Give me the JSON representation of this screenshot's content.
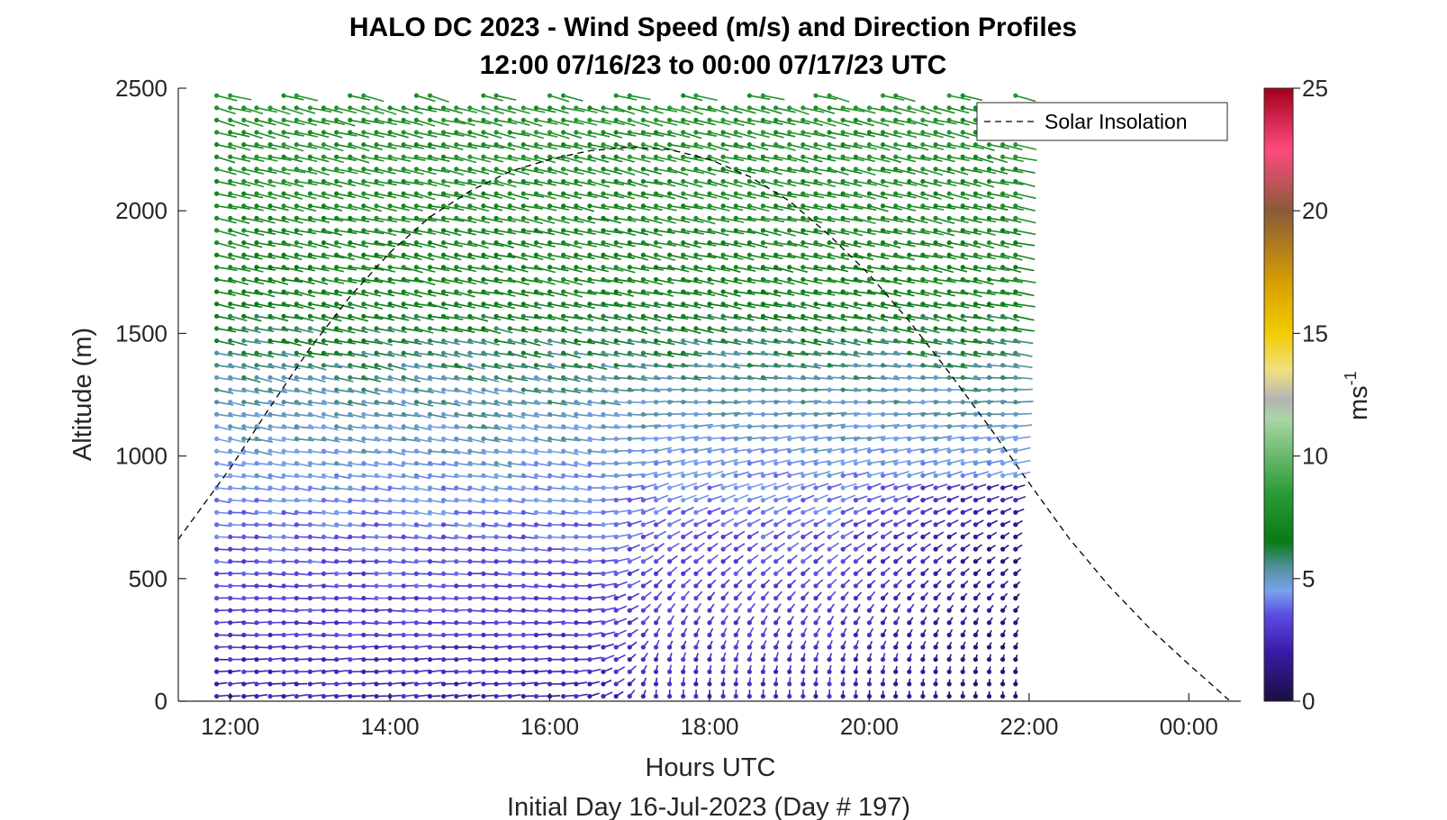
{
  "chart_data": {
    "type": "wind-barb-profile",
    "title": "HALO DC 2023 - Wind Speed (m/s) and Direction Profiles",
    "subtitle": "12:00 07/16/23 to 00:00 07/17/23  UTC",
    "xlabel": "Hours UTC",
    "ylabel": "Altitude (m)",
    "footer": "Initial Day 16-Jul-2023 (Day # 197)",
    "x_unit": "hours UTC (day 16-Jul-2023, 24 = 00:00 next day)",
    "xlim": [
      11.35,
      24.65
    ],
    "ylim": [
      0,
      2500
    ],
    "x_ticks": [
      {
        "value": 12,
        "label": "12:00"
      },
      {
        "value": 14,
        "label": "14:00"
      },
      {
        "value": 16,
        "label": "16:00"
      },
      {
        "value": 18,
        "label": "18:00"
      },
      {
        "value": 20,
        "label": "20:00"
      },
      {
        "value": 22,
        "label": "22:00"
      },
      {
        "value": 24,
        "label": "00:00"
      }
    ],
    "y_ticks": [
      {
        "value": 0,
        "label": "0"
      },
      {
        "value": 500,
        "label": "500"
      },
      {
        "value": 1000,
        "label": "1000"
      },
      {
        "value": 1500,
        "label": "1500"
      },
      {
        "value": 2000,
        "label": "2000"
      },
      {
        "value": 2500,
        "label": "2500"
      }
    ],
    "legend": {
      "label": "Solar Insolation",
      "placement": "top-right"
    },
    "colorbar": {
      "label": "ms",
      "label_exponent": "-1",
      "range": [
        0,
        25
      ],
      "ticks": [
        {
          "value": 0,
          "label": "0"
        },
        {
          "value": 5,
          "label": "5"
        },
        {
          "value": 10,
          "label": "10"
        },
        {
          "value": 15,
          "label": "15"
        },
        {
          "value": 20,
          "label": "20"
        },
        {
          "value": 25,
          "label": "25"
        }
      ],
      "stops": [
        {
          "v": 0,
          "c": "#1a1040"
        },
        {
          "v": 2,
          "c": "#3b1aa8"
        },
        {
          "v": 3.5,
          "c": "#5a4ce0"
        },
        {
          "v": 4.5,
          "c": "#7aa2ee"
        },
        {
          "v": 5.5,
          "c": "#4f8f9a"
        },
        {
          "v": 6.5,
          "c": "#0a7a14"
        },
        {
          "v": 8.5,
          "c": "#2b9b35"
        },
        {
          "v": 11.5,
          "c": "#a9d6a5"
        },
        {
          "v": 12.3,
          "c": "#b4b4b4"
        },
        {
          "v": 13.5,
          "c": "#f0e080"
        },
        {
          "v": 15,
          "c": "#f2cc00"
        },
        {
          "v": 17,
          "c": "#d9a000"
        },
        {
          "v": 20,
          "c": "#8a5a3a"
        },
        {
          "v": 22.5,
          "c": "#ff4a7e"
        },
        {
          "v": 25,
          "c": "#a3001a"
        }
      ]
    },
    "solar_insolation": {
      "style": "dashed",
      "color": "#000000",
      "points": [
        [
          11.35,
          660
        ],
        [
          12.0,
          950
        ],
        [
          12.5,
          1200
        ],
        [
          13.0,
          1440
        ],
        [
          13.5,
          1650
        ],
        [
          14.0,
          1830
        ],
        [
          14.5,
          1975
        ],
        [
          15.0,
          2080
        ],
        [
          15.5,
          2160
        ],
        [
          16.0,
          2210
        ],
        [
          16.5,
          2245
        ],
        [
          17.0,
          2260
        ],
        [
          17.5,
          2250
        ],
        [
          18.0,
          2210
        ],
        [
          18.5,
          2140
        ],
        [
          19.0,
          2040
        ],
        [
          19.5,
          1900
        ],
        [
          20.0,
          1740
        ],
        [
          20.5,
          1550
        ],
        [
          21.0,
          1340
        ],
        [
          21.5,
          1120
        ],
        [
          22.0,
          890
        ],
        [
          22.5,
          665
        ],
        [
          23.0,
          470
        ],
        [
          23.5,
          300
        ],
        [
          24.0,
          150
        ],
        [
          24.5,
          5
        ]
      ]
    },
    "wind_profiles": {
      "description": "Wind barbs: one profile roughly every 10 minutes from ~11:50 to ~21:50 UTC, color = wind speed (m/s)",
      "times": [
        11.83,
        12.0,
        12.17,
        12.33,
        12.5,
        12.67,
        12.83,
        13.0,
        13.17,
        13.33,
        13.5,
        13.67,
        13.83,
        14.0,
        14.17,
        14.33,
        14.5,
        14.67,
        14.83,
        15.0,
        15.17,
        15.33,
        15.5,
        15.67,
        15.83,
        16.0,
        16.17,
        16.33,
        16.5,
        16.67,
        16.83,
        17.0,
        17.17,
        17.33,
        17.5,
        17.67,
        17.83,
        18.0,
        18.17,
        18.33,
        18.5,
        18.67,
        18.83,
        19.0,
        19.17,
        19.33,
        19.5,
        19.67,
        19.83,
        20.0,
        20.17,
        20.33,
        20.5,
        20.67,
        20.83,
        21.0,
        21.17,
        21.33,
        21.5,
        21.67,
        21.83
      ],
      "altitude_step_m": 50,
      "speed_by_altitude": [
        {
          "alt": 0,
          "speed": 2.2,
          "dir_deg": 260
        },
        {
          "alt": 300,
          "speed": 3.0,
          "dir_deg": 270
        },
        {
          "alt": 600,
          "speed": 3.5,
          "dir_deg": 275
        },
        {
          "alt": 900,
          "speed": 4.5,
          "dir_deg": 285
        },
        {
          "alt": 1300,
          "speed": 5.5,
          "dir_deg": 290
        },
        {
          "alt": 1700,
          "speed": 7.0,
          "dir_deg": 290
        },
        {
          "alt": 2500,
          "speed": 8.0,
          "dir_deg": 295
        }
      ],
      "afternoon_regime": {
        "from": 16.3,
        "low_alt_dir_deg": 180,
        "low_alt_speed": 3.0
      }
    }
  }
}
